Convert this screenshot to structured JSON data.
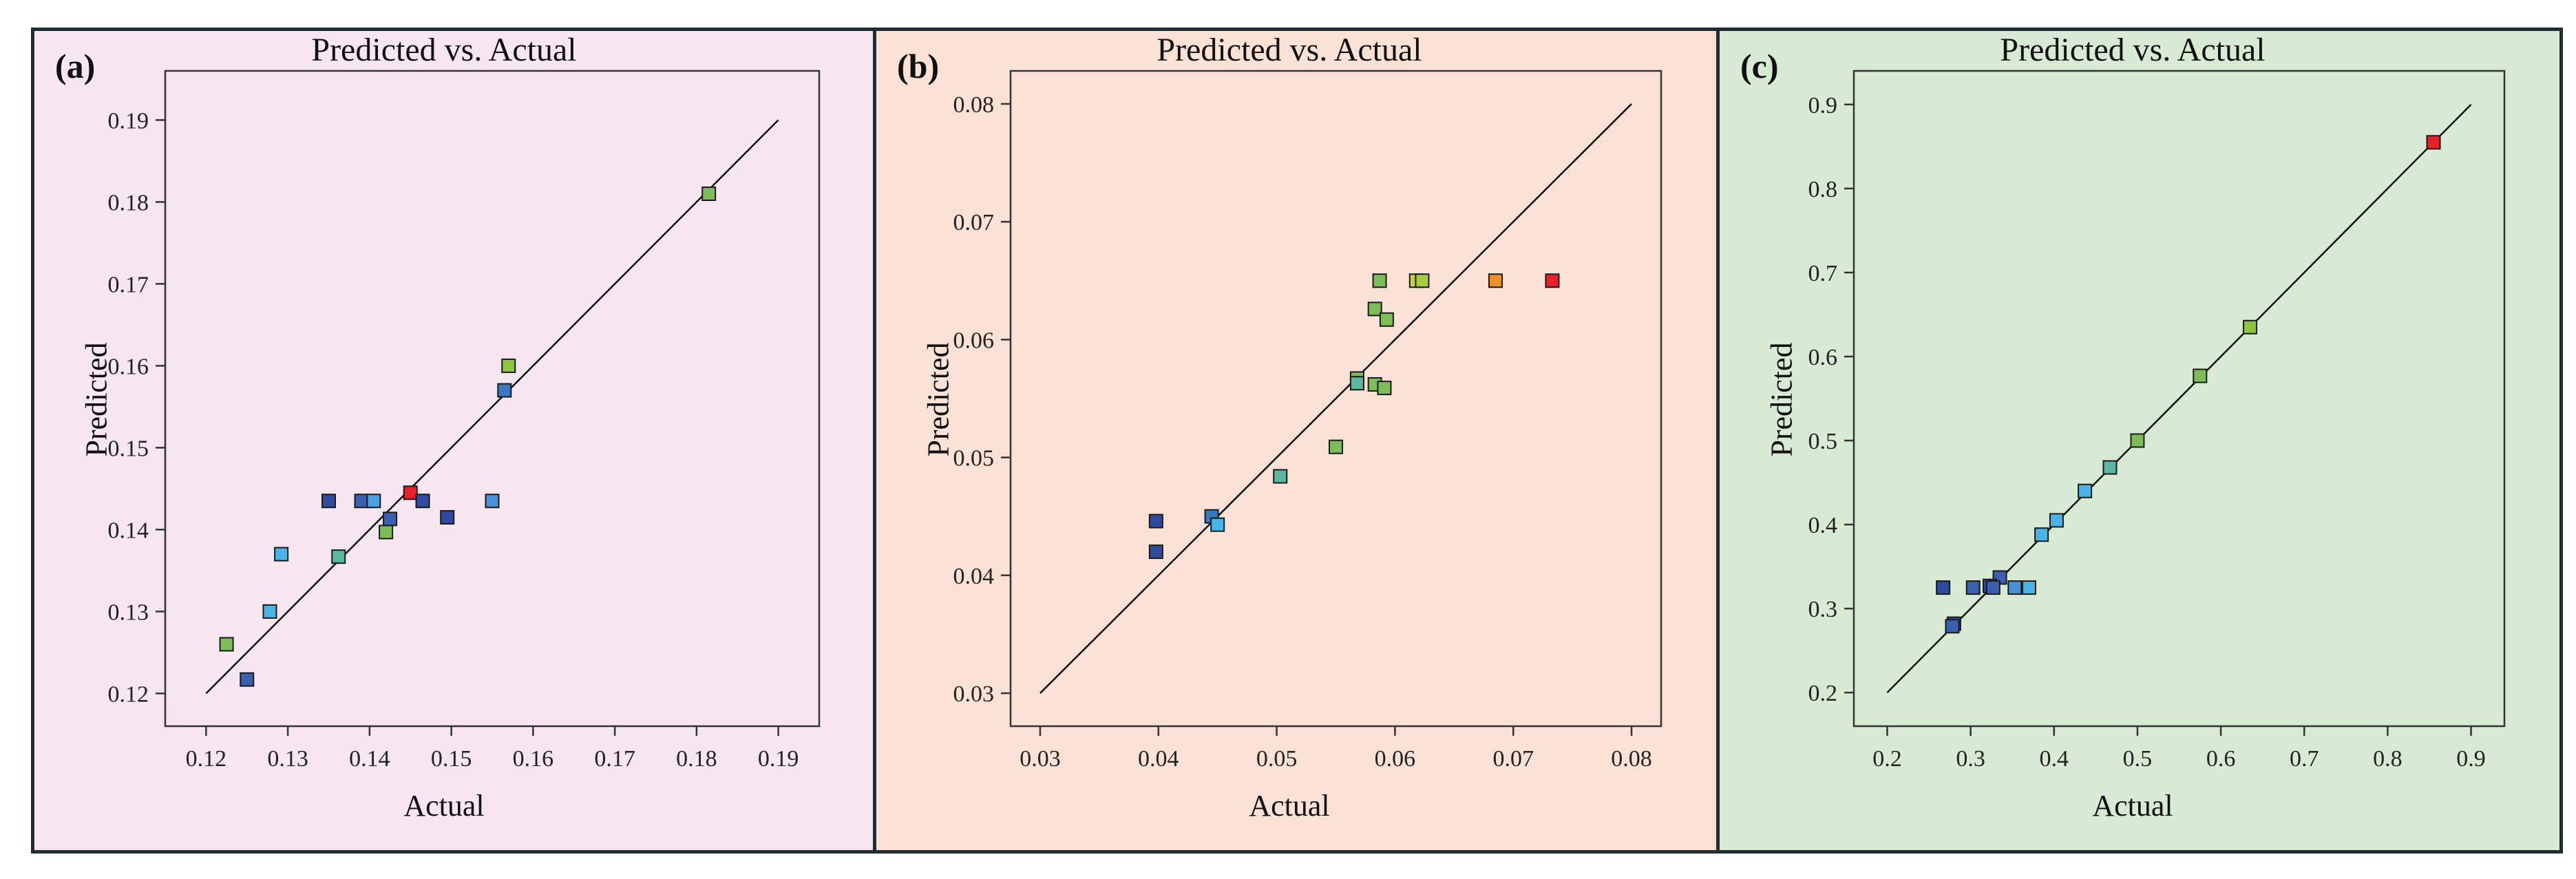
{
  "chart_data": [
    {
      "panel_label": "(a)",
      "type": "scatter",
      "title": "Predicted vs. Actual",
      "xlabel": "Actual",
      "ylabel": "Predicted",
      "xlim": [
        0.115,
        0.195
      ],
      "ylim": [
        0.116,
        0.196
      ],
      "xticks": [
        0.12,
        0.13,
        0.14,
        0.15,
        0.16,
        0.17,
        0.18,
        0.19
      ],
      "yticks": [
        0.12,
        0.13,
        0.14,
        0.15,
        0.16,
        0.17,
        0.18,
        0.19
      ],
      "xtick_labels": [
        "0.12",
        "0.13",
        "0.14",
        "0.15",
        "0.16",
        "0.17",
        "0.18",
        "0.19"
      ],
      "ytick_labels": [
        "0.12",
        "0.13",
        "0.14",
        "0.15",
        "0.16",
        "0.17",
        "0.18",
        "0.19"
      ],
      "reference_line": [
        [
          0.12,
          0.12
        ],
        [
          0.19,
          0.19
        ]
      ],
      "background": "#f5e6f0",
      "points": [
        {
          "x": 0.1815,
          "y": 0.181,
          "color": "#7cbd5a"
        },
        {
          "x": 0.157,
          "y": 0.16,
          "color": "#8cc640"
        },
        {
          "x": 0.1565,
          "y": 0.157,
          "color": "#3a78c0"
        },
        {
          "x": 0.145,
          "y": 0.1445,
          "color": "#e8202a"
        },
        {
          "x": 0.135,
          "y": 0.1435,
          "color": "#2e4a9e"
        },
        {
          "x": 0.139,
          "y": 0.1435,
          "color": "#3a5eb0"
        },
        {
          "x": 0.1405,
          "y": 0.1435,
          "color": "#4aa0e0"
        },
        {
          "x": 0.1465,
          "y": 0.1435,
          "color": "#2e4a9e"
        },
        {
          "x": 0.155,
          "y": 0.1435,
          "color": "#4a90d9"
        },
        {
          "x": 0.1425,
          "y": 0.1413,
          "color": "#3a5eb0"
        },
        {
          "x": 0.1495,
          "y": 0.1415,
          "color": "#2e4a9e"
        },
        {
          "x": 0.142,
          "y": 0.1397,
          "color": "#7cbd5a"
        },
        {
          "x": 0.1292,
          "y": 0.137,
          "color": "#4ab3e6"
        },
        {
          "x": 0.1362,
          "y": 0.1367,
          "color": "#5ab8a0"
        },
        {
          "x": 0.1278,
          "y": 0.13,
          "color": "#4ab3e6"
        },
        {
          "x": 0.1225,
          "y": 0.126,
          "color": "#7cbd5a"
        },
        {
          "x": 0.125,
          "y": 0.1217,
          "color": "#3a5eb0"
        }
      ]
    },
    {
      "panel_label": "(b)",
      "type": "scatter",
      "title": "Predicted vs. Actual",
      "xlabel": "Actual",
      "ylabel": "Predicted",
      "xlim": [
        0.0275,
        0.0825
      ],
      "ylim": [
        0.0272,
        0.0828
      ],
      "xticks": [
        0.03,
        0.04,
        0.05,
        0.06,
        0.07,
        0.08
      ],
      "yticks": [
        0.03,
        0.04,
        0.05,
        0.06,
        0.07,
        0.08
      ],
      "xtick_labels": [
        "0.03",
        "0.04",
        "0.05",
        "0.06",
        "0.07",
        "0.08"
      ],
      "ytick_labels": [
        "0.03",
        "0.04",
        "0.05",
        "0.06",
        "0.07",
        "0.08"
      ],
      "reference_line": [
        [
          0.03,
          0.03
        ],
        [
          0.08,
          0.08
        ]
      ],
      "background": "#fae1d6",
      "points": [
        {
          "x": 0.0733,
          "y": 0.065,
          "color": "#e8202a"
        },
        {
          "x": 0.0685,
          "y": 0.065,
          "color": "#f0902a"
        },
        {
          "x": 0.0618,
          "y": 0.065,
          "color": "#c8d23c"
        },
        {
          "x": 0.0623,
          "y": 0.065,
          "color": "#a8cc40"
        },
        {
          "x": 0.0587,
          "y": 0.065,
          "color": "#7cbd5a"
        },
        {
          "x": 0.0583,
          "y": 0.0626,
          "color": "#7cbd5a"
        },
        {
          "x": 0.0593,
          "y": 0.0617,
          "color": "#7cbd5a"
        },
        {
          "x": 0.0568,
          "y": 0.0567,
          "color": "#7cbd5a"
        },
        {
          "x": 0.0568,
          "y": 0.0563,
          "color": "#5ab8a0"
        },
        {
          "x": 0.0583,
          "y": 0.0562,
          "color": "#7cbd5a"
        },
        {
          "x": 0.0591,
          "y": 0.0559,
          "color": "#7cbd5a"
        },
        {
          "x": 0.055,
          "y": 0.0509,
          "color": "#7cbd5a"
        },
        {
          "x": 0.0503,
          "y": 0.0484,
          "color": "#5ab8a0"
        },
        {
          "x": 0.0445,
          "y": 0.045,
          "color": "#3a78c0"
        },
        {
          "x": 0.045,
          "y": 0.0443,
          "color": "#4ab3e6"
        },
        {
          "x": 0.0398,
          "y": 0.0446,
          "color": "#2e4a9e"
        },
        {
          "x": 0.0398,
          "y": 0.042,
          "color": "#2e4a9e"
        }
      ]
    },
    {
      "panel_label": "(c)",
      "type": "scatter",
      "title": "Predicted vs. Actual",
      "xlabel": "Actual",
      "ylabel": "Predicted",
      "xlim": [
        0.16,
        0.94
      ],
      "ylim": [
        0.16,
        0.94
      ],
      "xticks": [
        0.2,
        0.3,
        0.4,
        0.5,
        0.6,
        0.7,
        0.8,
        0.9
      ],
      "yticks": [
        0.2,
        0.3,
        0.4,
        0.5,
        0.6,
        0.7,
        0.8,
        0.9
      ],
      "xtick_labels": [
        "0.2",
        "0.3",
        "0.4",
        "0.5",
        "0.6",
        "0.7",
        "0.8",
        "0.9"
      ],
      "ytick_labels": [
        "0.2",
        "0.3",
        "0.4",
        "0.5",
        "0.6",
        "0.7",
        "0.8",
        "0.9"
      ],
      "reference_line": [
        [
          0.2,
          0.2
        ],
        [
          0.9,
          0.9
        ]
      ],
      "background": "#d9ead4",
      "points": [
        {
          "x": 0.855,
          "y": 0.855,
          "color": "#e8202a"
        },
        {
          "x": 0.635,
          "y": 0.635,
          "color": "#8cc640"
        },
        {
          "x": 0.575,
          "y": 0.577,
          "color": "#7cbd5a"
        },
        {
          "x": 0.5,
          "y": 0.5,
          "color": "#7cbd5a"
        },
        {
          "x": 0.467,
          "y": 0.468,
          "color": "#5ab8a0"
        },
        {
          "x": 0.437,
          "y": 0.44,
          "color": "#4ab3e6"
        },
        {
          "x": 0.403,
          "y": 0.405,
          "color": "#4ab3e6"
        },
        {
          "x": 0.385,
          "y": 0.388,
          "color": "#4ab3e6"
        },
        {
          "x": 0.335,
          "y": 0.337,
          "color": "#3a5eb0"
        },
        {
          "x": 0.323,
          "y": 0.327,
          "color": "#2e4a9e"
        },
        {
          "x": 0.327,
          "y": 0.325,
          "color": "#3a5eb0"
        },
        {
          "x": 0.267,
          "y": 0.325,
          "color": "#2e4a9e"
        },
        {
          "x": 0.303,
          "y": 0.325,
          "color": "#3a5eb0"
        },
        {
          "x": 0.353,
          "y": 0.325,
          "color": "#4a90d9"
        },
        {
          "x": 0.37,
          "y": 0.325,
          "color": "#4ab3e6"
        },
        {
          "x": 0.28,
          "y": 0.282,
          "color": "#2e4a9e"
        },
        {
          "x": 0.278,
          "y": 0.279,
          "color": "#3a5eb0"
        }
      ]
    }
  ]
}
